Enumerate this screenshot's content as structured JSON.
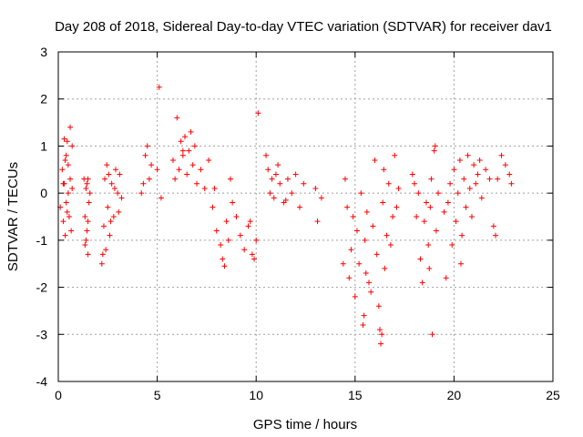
{
  "chart_data": {
    "type": "scatter",
    "title": "Day 208 of 2018, Sidereal Day-to-day VTEC variation (SDTVAR) for receiver dav1",
    "xlabel": "GPS time / hours",
    "ylabel": "SDTVAR / TECUs",
    "xlim": [
      0,
      25
    ],
    "ylim": [
      -4,
      3
    ],
    "xticks": [
      0,
      5,
      10,
      15,
      20,
      25
    ],
    "yticks": [
      -4,
      -3,
      -2,
      -1,
      0,
      1,
      2,
      3
    ],
    "grid": true,
    "marker": "plus",
    "color": "#ff0000",
    "series": [
      {
        "name": "SDTVAR",
        "x": [
          0.1,
          0.2,
          0.25,
          0.3,
          0.3,
          0.35,
          0.4,
          0.4,
          0.45,
          0.5,
          0.5,
          0.55,
          0.6,
          0.6,
          0.65,
          0.7,
          0.7,
          0.35,
          0.25,
          0.45,
          1.3,
          1.35,
          1.4,
          1.4,
          1.45,
          1.5,
          1.5,
          1.55,
          1.6,
          1.35,
          1.45,
          1.5,
          2.2,
          2.3,
          2.35,
          2.4,
          2.45,
          2.5,
          2.55,
          2.6,
          2.7,
          2.8,
          2.9,
          3.0,
          3.1,
          3.2,
          2.25,
          2.65,
          2.85,
          3.05,
          4.2,
          4.3,
          4.4,
          4.5,
          4.6,
          4.7,
          5.0,
          5.1,
          5.2,
          5.8,
          5.9,
          6.0,
          6.1,
          6.2,
          6.3,
          6.4,
          6.5,
          6.6,
          6.7,
          6.8,
          6.9,
          7.0,
          7.2,
          7.4,
          7.6,
          7.8,
          8.0,
          8.2,
          8.3,
          8.4,
          8.5,
          8.6,
          8.8,
          9.0,
          9.2,
          9.4,
          9.6,
          9.8,
          10.0,
          10.1,
          9.9,
          9.7,
          8.7,
          7.9,
          6.3,
          10.5,
          10.6,
          10.7,
          10.8,
          10.9,
          11.0,
          11.2,
          11.4,
          11.6,
          11.8,
          12.0,
          12.2,
          12.4,
          11.1,
          11.5,
          13.0,
          13.1,
          13.3,
          14.4,
          14.5,
          14.6,
          14.7,
          14.8,
          14.9,
          15.0,
          15.1,
          15.2,
          15.3,
          15.4,
          15.5,
          15.6,
          15.7,
          15.8,
          15.9,
          16.0,
          16.1,
          16.2,
          16.3,
          16.4,
          16.5,
          16.6,
          16.7,
          16.8,
          16.9,
          17.0,
          17.1,
          17.2,
          15.45,
          16.25,
          15.55,
          16.35,
          16.45,
          17.9,
          18.0,
          18.1,
          18.2,
          18.3,
          18.4,
          18.5,
          18.6,
          18.7,
          18.8,
          18.9,
          19.0,
          19.1,
          19.2,
          18.75,
          19.05,
          18.85,
          19.5,
          19.6,
          19.7,
          19.8,
          19.9,
          20.0,
          20.1,
          20.2,
          20.3,
          20.4,
          20.5,
          20.6,
          20.7,
          20.8,
          20.9,
          21.0,
          21.1,
          21.2,
          21.4,
          21.6,
          21.8,
          22.0,
          22.1,
          22.2,
          22.4,
          22.6,
          22.8,
          22.9,
          21.3,
          20.35
        ],
        "y": [
          -0.3,
          0.5,
          -0.6,
          1.15,
          0.2,
          -0.9,
          0.8,
          -0.2,
          1.1,
          0.0,
          0.6,
          -0.5,
          1.4,
          0.3,
          -0.8,
          0.1,
          1.0,
          0.7,
          0.2,
          -0.4,
          0.3,
          -0.5,
          -1.0,
          0.1,
          -0.8,
          -1.3,
          0.3,
          -0.2,
          0.0,
          -1.1,
          0.2,
          -0.6,
          -1.5,
          -0.7,
          0.3,
          -1.2,
          0.6,
          -0.3,
          0.4,
          -0.9,
          0.2,
          -0.5,
          0.5,
          0.0,
          0.4,
          -0.1,
          -1.3,
          -0.6,
          0.1,
          -0.4,
          0.0,
          0.2,
          0.8,
          1.0,
          0.3,
          0.6,
          0.5,
          2.25,
          -0.1,
          0.7,
          0.3,
          1.6,
          0.5,
          1.1,
          0.8,
          1.2,
          0.4,
          0.9,
          1.3,
          0.6,
          1.0,
          0.2,
          0.5,
          0.1,
          0.7,
          -0.3,
          -0.8,
          -1.1,
          -1.4,
          -1.55,
          -0.6,
          -1.0,
          -0.2,
          -0.5,
          -0.9,
          -1.2,
          -0.7,
          -1.3,
          -1.0,
          1.7,
          -1.4,
          -0.6,
          0.3,
          0.1,
          0.9,
          0.8,
          0.5,
          0.0,
          0.3,
          -0.1,
          0.4,
          0.2,
          -0.2,
          0.3,
          0.0,
          0.4,
          -0.3,
          0.2,
          0.6,
          -0.15,
          0.1,
          -0.6,
          -0.1,
          -1.5,
          0.3,
          -0.3,
          -1.8,
          -1.2,
          -0.5,
          -2.2,
          -0.8,
          -1.5,
          0.0,
          -2.8,
          -1.0,
          -0.4,
          -1.9,
          -2.1,
          -0.7,
          0.7,
          -1.3,
          -2.4,
          -3.2,
          -0.2,
          -1.6,
          -0.9,
          0.2,
          -1.1,
          -0.5,
          0.8,
          -0.3,
          0.1,
          -2.6,
          -2.9,
          -1.7,
          -3.0,
          0.5,
          0.4,
          0.2,
          -0.5,
          0.0,
          -1.4,
          -1.9,
          -0.6,
          -0.2,
          -1.1,
          -0.3,
          -3.0,
          0.9,
          -0.8,
          0.0,
          -1.6,
          1.0,
          0.3,
          -0.4,
          -1.8,
          -0.2,
          0.2,
          -1.1,
          0.5,
          -0.6,
          0.0,
          0.7,
          -0.9,
          0.3,
          -0.3,
          0.8,
          0.1,
          -0.5,
          0.6,
          0.2,
          0.4,
          -0.1,
          0.5,
          0.3,
          -0.7,
          -0.9,
          0.3,
          0.8,
          0.6,
          0.4,
          0.2,
          0.7,
          -1.5
        ]
      }
    ]
  }
}
